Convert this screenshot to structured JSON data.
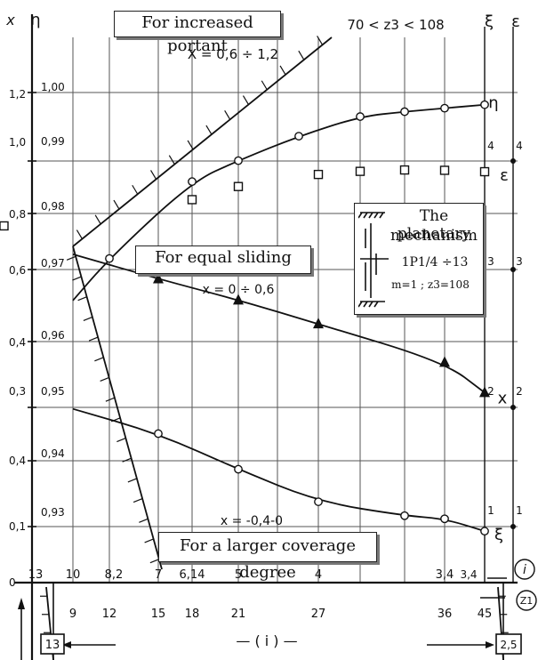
{
  "header": {
    "increased_portant": "For increased portant",
    "z3_range": "70 < z3 < 108"
  },
  "boxes": {
    "equal_sliding": "For equal sliding",
    "larger_coverage": "For a larger coverage degree"
  },
  "mechanism": {
    "title_line1": "The planetary",
    "title_line2": "mechanism",
    "ratio": "1P1/4 ÷13",
    "params": "m=1 ; z3=108"
  },
  "chart_data": {
    "type": "line",
    "z1_ticks": [
      "9",
      "12",
      "15",
      "18",
      "21",
      "27",
      "36",
      "45"
    ],
    "i_ticks": [
      "13",
      "10",
      "8,2",
      "7",
      "6,14",
      "5",
      "4",
      "3,4"
    ],
    "eta_ticks": [
      "1,00",
      "0,99",
      "0,98",
      "0,97",
      "0,96",
      "0,95",
      "0,94",
      "0,93"
    ],
    "x_ticks": [
      "1,2",
      "1,0",
      "0,8",
      "0,6",
      "0,4",
      "0,3",
      "0,4",
      "0,1",
      "0"
    ],
    "eps_ticks": [
      "4",
      "3",
      "2",
      "1"
    ],
    "right_ticks": [
      "4",
      "3",
      "2",
      "1"
    ],
    "axis_symbols": {
      "x_left": "x",
      "eta_left": "η",
      "xi_right": "ξ",
      "eps_right": "ε",
      "i_circle": "i",
      "z1_circle": "Z1",
      "i_bottom": "— ( i ) —",
      "left_limit": "13",
      "right_limit": "2,5"
    },
    "annotations": {
      "x_range_top": "X = 0,6 ÷ 1,2",
      "x_range_mid": "x = 0 ÷ 0,6",
      "x_range_low": "x = -0,4-0"
    },
    "series": [
      {
        "name": "η",
        "marker": "circle",
        "points": [
          [
            9,
            0.97
          ],
          [
            12,
            0.976
          ],
          [
            18,
            0.987
          ],
          [
            21,
            0.99
          ],
          [
            24,
            0.9935
          ],
          [
            30,
            0.9963
          ],
          [
            33,
            0.997
          ],
          [
            36,
            0.9975
          ],
          [
            45,
            0.998
          ]
        ]
      },
      {
        "name": "ε",
        "marker": "square",
        "points": [
          [
            9,
            0.652
          ],
          [
            14,
            0.812
          ],
          [
            18,
            0.888
          ],
          [
            21,
            0.926
          ],
          [
            27,
            0.961
          ],
          [
            30,
            0.97
          ],
          [
            33,
            0.974
          ],
          [
            36,
            0.973
          ],
          [
            45,
            0.969
          ]
        ]
      },
      {
        "name": "x",
        "marker": "triangle",
        "points": [
          [
            9,
            2.86
          ],
          [
            15,
            2.56
          ],
          [
            21,
            2.3
          ],
          [
            27,
            2.01
          ],
          [
            36,
            1.54
          ],
          [
            45,
            1.17
          ]
        ]
      },
      {
        "name": "ξ",
        "marker": "circle",
        "points": [
          [
            9,
            0.89
          ],
          [
            15,
            0.73
          ],
          [
            21,
            0.5
          ],
          [
            27,
            0.29
          ],
          [
            33,
            0.2
          ],
          [
            36,
            0.18
          ],
          [
            45,
            0.1
          ]
        ]
      }
    ]
  }
}
